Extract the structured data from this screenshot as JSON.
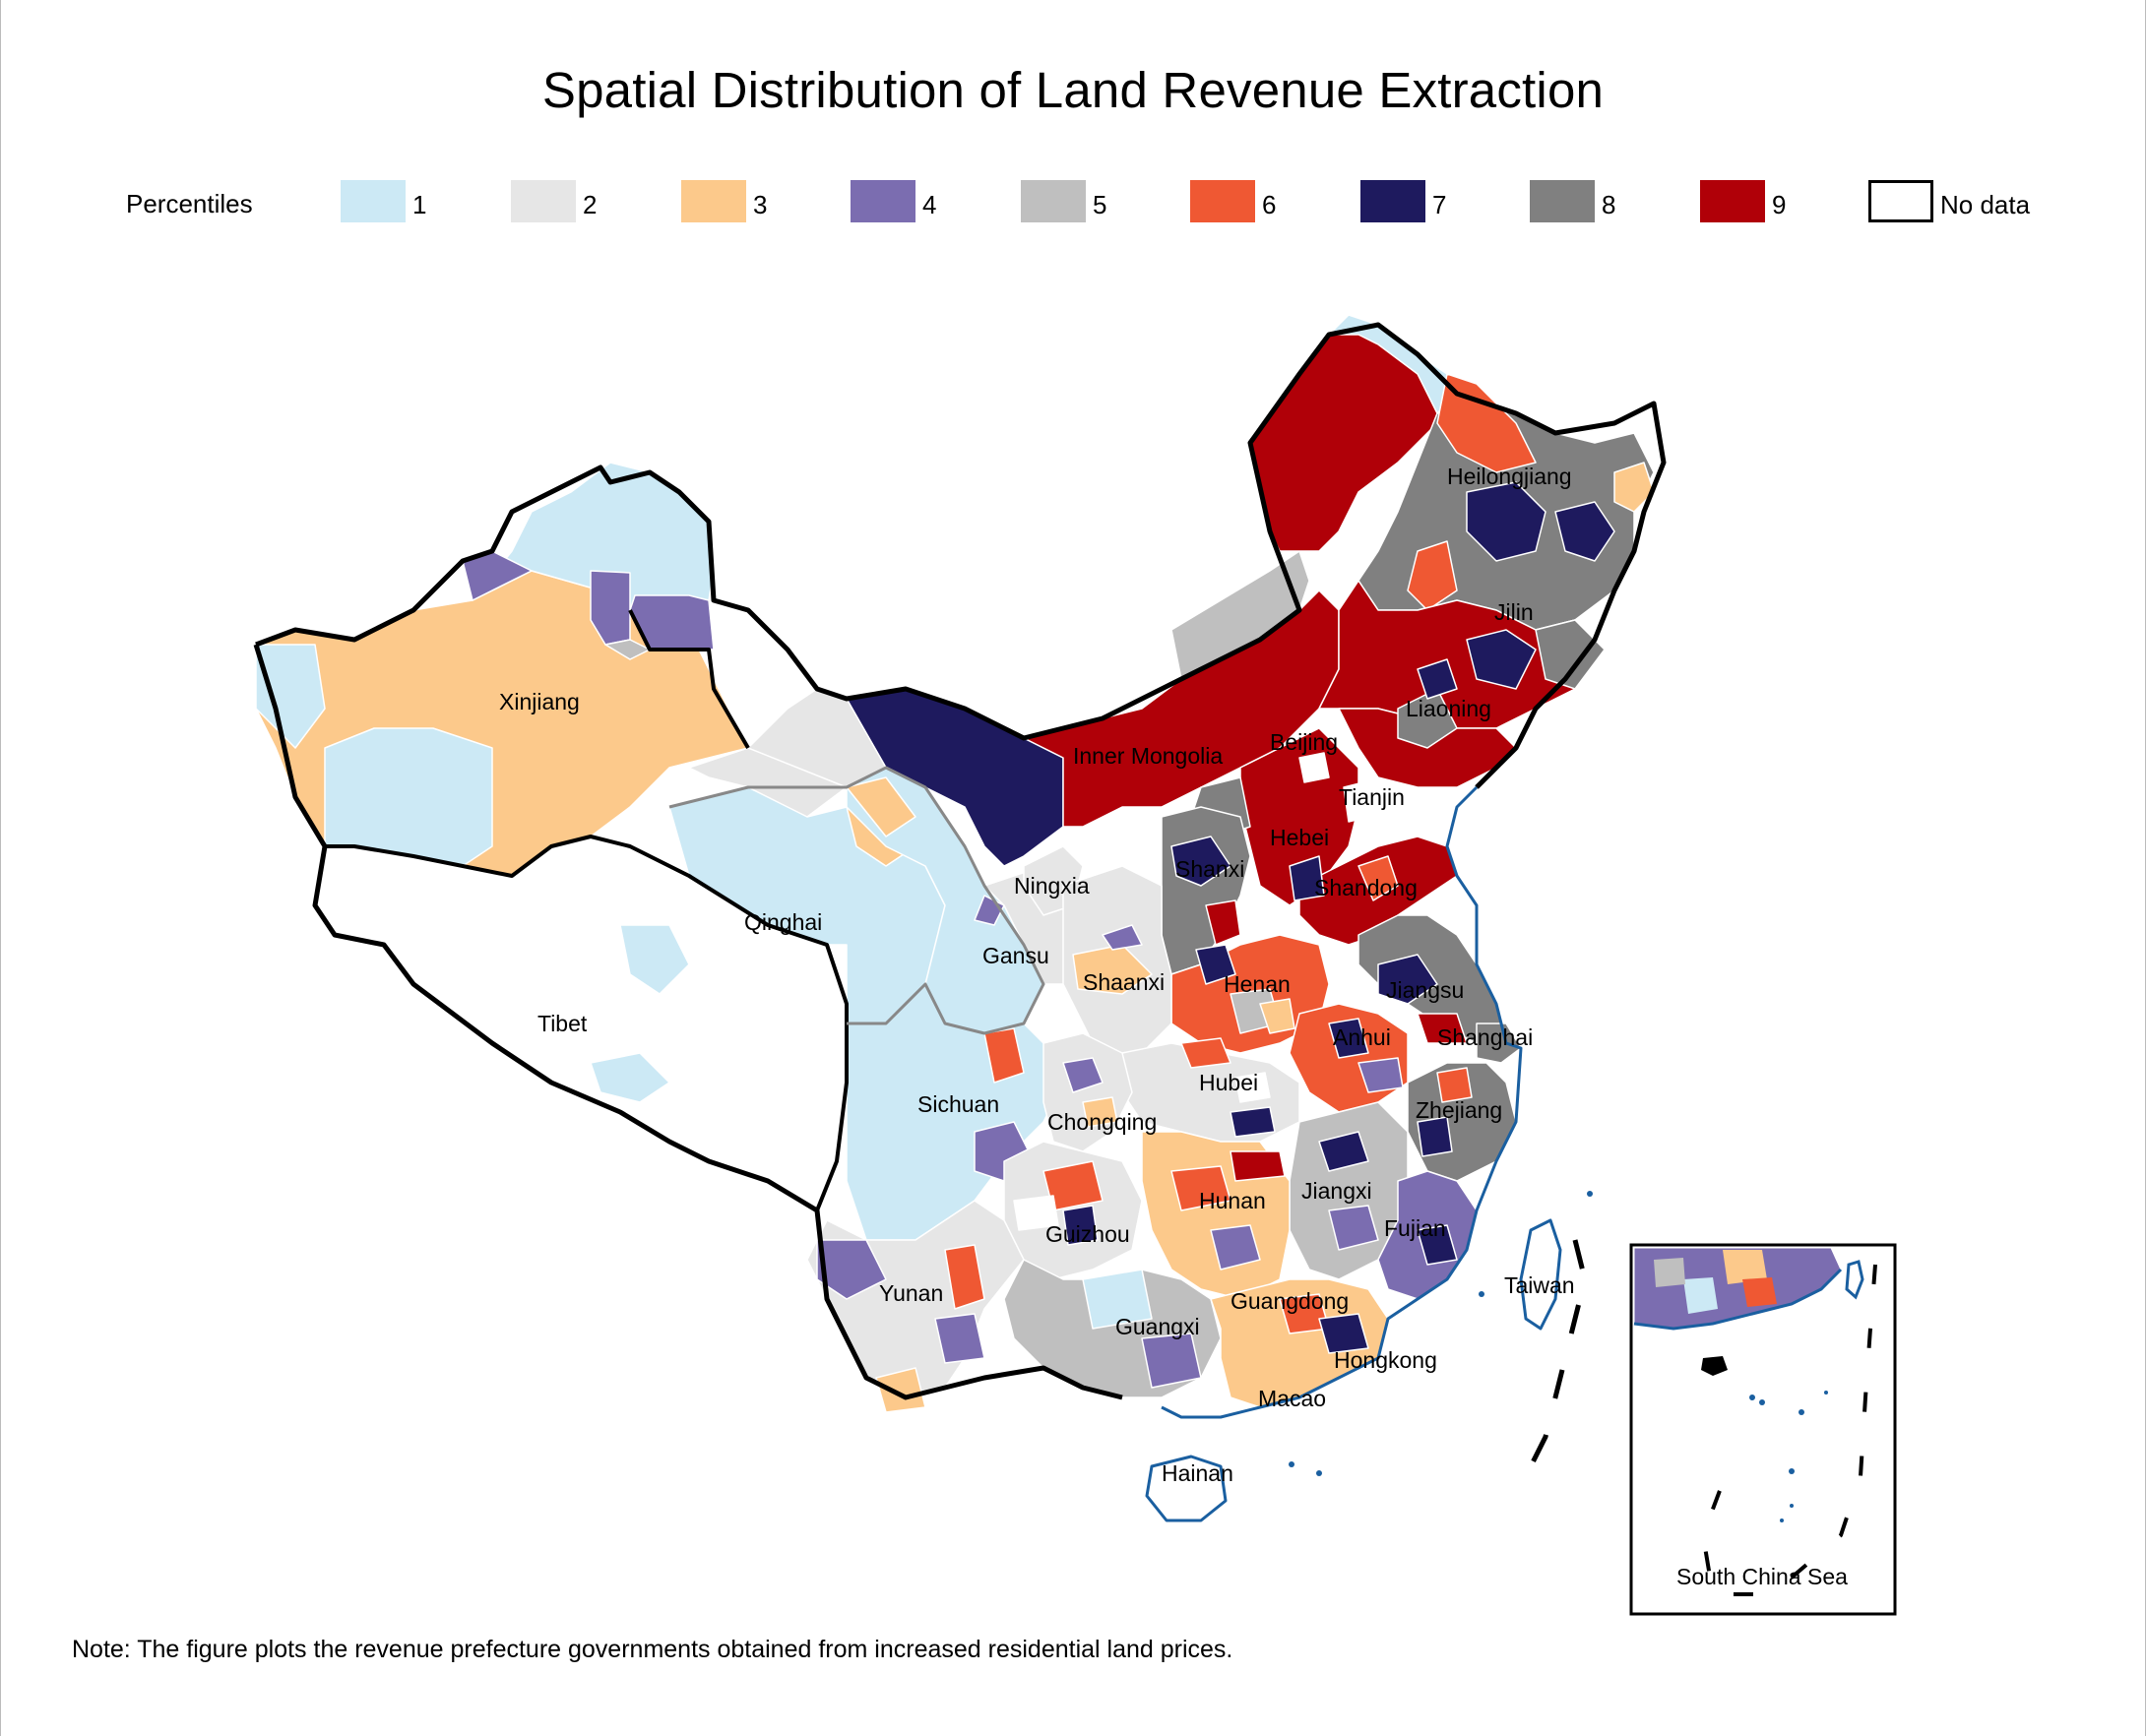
{
  "title": "Spatial Distribution of Land Revenue Extraction",
  "legend": {
    "title": "Percentiles",
    "items": [
      {
        "label": "1",
        "color": "#cce9f5"
      },
      {
        "label": "2",
        "color": "#e6e6e6"
      },
      {
        "label": "3",
        "color": "#fcc98b"
      },
      {
        "label": "4",
        "color": "#7b6db0"
      },
      {
        "label": "5",
        "color": "#bfbfbf"
      },
      {
        "label": "6",
        "color": "#ef5833"
      },
      {
        "label": "7",
        "color": "#1e1a5e"
      },
      {
        "label": "8",
        "color": "#808080"
      },
      {
        "label": "9",
        "color": "#b00008"
      },
      {
        "label": "No data",
        "color": "#ffffff"
      }
    ]
  },
  "provinces": {
    "xinjiang": "Xinjiang",
    "tibet": "Tibet",
    "qinghai": "Qinghai",
    "gansu": "Gansu",
    "ningxia": "Ningxia",
    "inner_mongolia": "Inner Mongolia",
    "heilongjiang": "Heilongjiang",
    "jilin": "Jilin",
    "liaoning": "Liaoning",
    "beijing": "Beijing",
    "tianjin": "Tianjin",
    "hebei": "Hebei",
    "shanxi": "Shanxi",
    "shandong": "Shandong",
    "henan": "Henan",
    "shaanxi": "Shaanxi",
    "jiangsu": "Jiangsu",
    "anhui": "Anhui",
    "shanghai": "Shanghai",
    "hubei": "Hubei",
    "sichuan": "Sichuan",
    "chongqing": "Chongqing",
    "zhejiang": "Zhejiang",
    "jiangxi": "Jiangxi",
    "hunan": "Hunan",
    "guizhou": "Guizhou",
    "fujian": "Fujian",
    "taiwan": "Taiwan",
    "yunan": "Yunan",
    "guangxi": "Guangxi",
    "guangdong": "Guangdong",
    "hongkong": "Hongkong",
    "macao": "Macao",
    "hainan": "Hainan"
  },
  "inset_label": "South China Sea",
  "note": "Note: The figure plots the revenue prefecture governments obtained from increased residential land prices."
}
